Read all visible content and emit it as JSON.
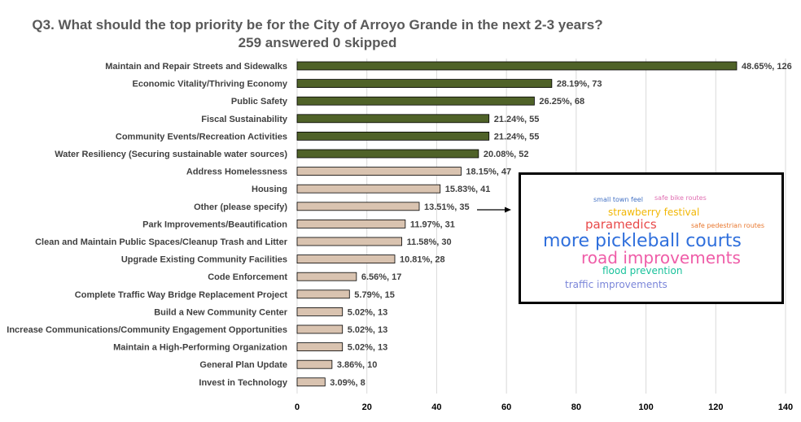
{
  "title": {
    "line1": "Q3. What should the top priority be for the City of Arroyo Grande in the next 2-3 years?",
    "line2": "259 answered 0 skipped"
  },
  "chart_data": {
    "type": "bar",
    "orientation": "horizontal",
    "categories": [
      "Maintain and Repair Streets and Sidewalks",
      "Economic Vitality/Thriving Economy",
      "Public Safety",
      "Fiscal Sustainability",
      "Community Events/Recreation Activities",
      "Water Resiliency (Securing sustainable water sources)",
      "Address Homelessness",
      "Housing",
      "Other (please specify)",
      "Park Improvements/Beautification",
      "Clean and Maintain Public Spaces/Cleanup Trash and Litter",
      "Upgrade Existing Community Facilities",
      "Code Enforcement",
      "Complete Traffic Way Bridge Replacement Project",
      "Build a New Community Center",
      "Increase Communications/Community Engagement Opportunities",
      "Maintain a High-Performing Organization",
      "General Plan Update",
      "Invest in Technology"
    ],
    "values": [
      126,
      73,
      68,
      55,
      55,
      52,
      47,
      41,
      35,
      31,
      30,
      28,
      17,
      15,
      13,
      13,
      13,
      10,
      8
    ],
    "data_labels": [
      "48.65%, 126",
      "28.19%, 73",
      "26.25%, 68",
      "21.24%, 55",
      "21.24%, 55",
      "20.08%, 52",
      "18.15%, 47",
      "15.83%, 41",
      "13.51%, 35",
      "11.97%, 31",
      "11.58%, 30",
      "10.81%, 28",
      "6.56%, 17",
      "5.79%, 15",
      "5.02%, 13",
      "5.02%, 13",
      "5.02%, 13",
      "3.86%, 10",
      "3.09%, 8"
    ],
    "highlight_count": 6,
    "colors": {
      "highlight": "#4f6228",
      "normal": "#d9c3b0",
      "bar_border": "#000000",
      "grid": "#d9d9d9"
    },
    "xlim": [
      0,
      140
    ],
    "xticks": [
      0,
      20,
      40,
      60,
      80,
      100,
      120,
      140
    ],
    "grid": true
  },
  "word_cloud": {
    "words": [
      {
        "text": "small town feel",
        "color": "#4472c4"
      },
      {
        "text": "safe bike routes",
        "color": "#e06fb2"
      },
      {
        "text": "strawberry festival",
        "color": "#f2b705"
      },
      {
        "text": "paramedics",
        "color": "#e84a4a"
      },
      {
        "text": "safe pedestrian routes",
        "color": "#e8772e"
      },
      {
        "text": "more pickleball courts",
        "color": "#2f6fdc"
      },
      {
        "text": "road improvements",
        "color": "#ef5da8"
      },
      {
        "text": "flood prevention",
        "color": "#19c29b"
      },
      {
        "text": "traffic improvements",
        "color": "#7b86d9"
      }
    ]
  }
}
